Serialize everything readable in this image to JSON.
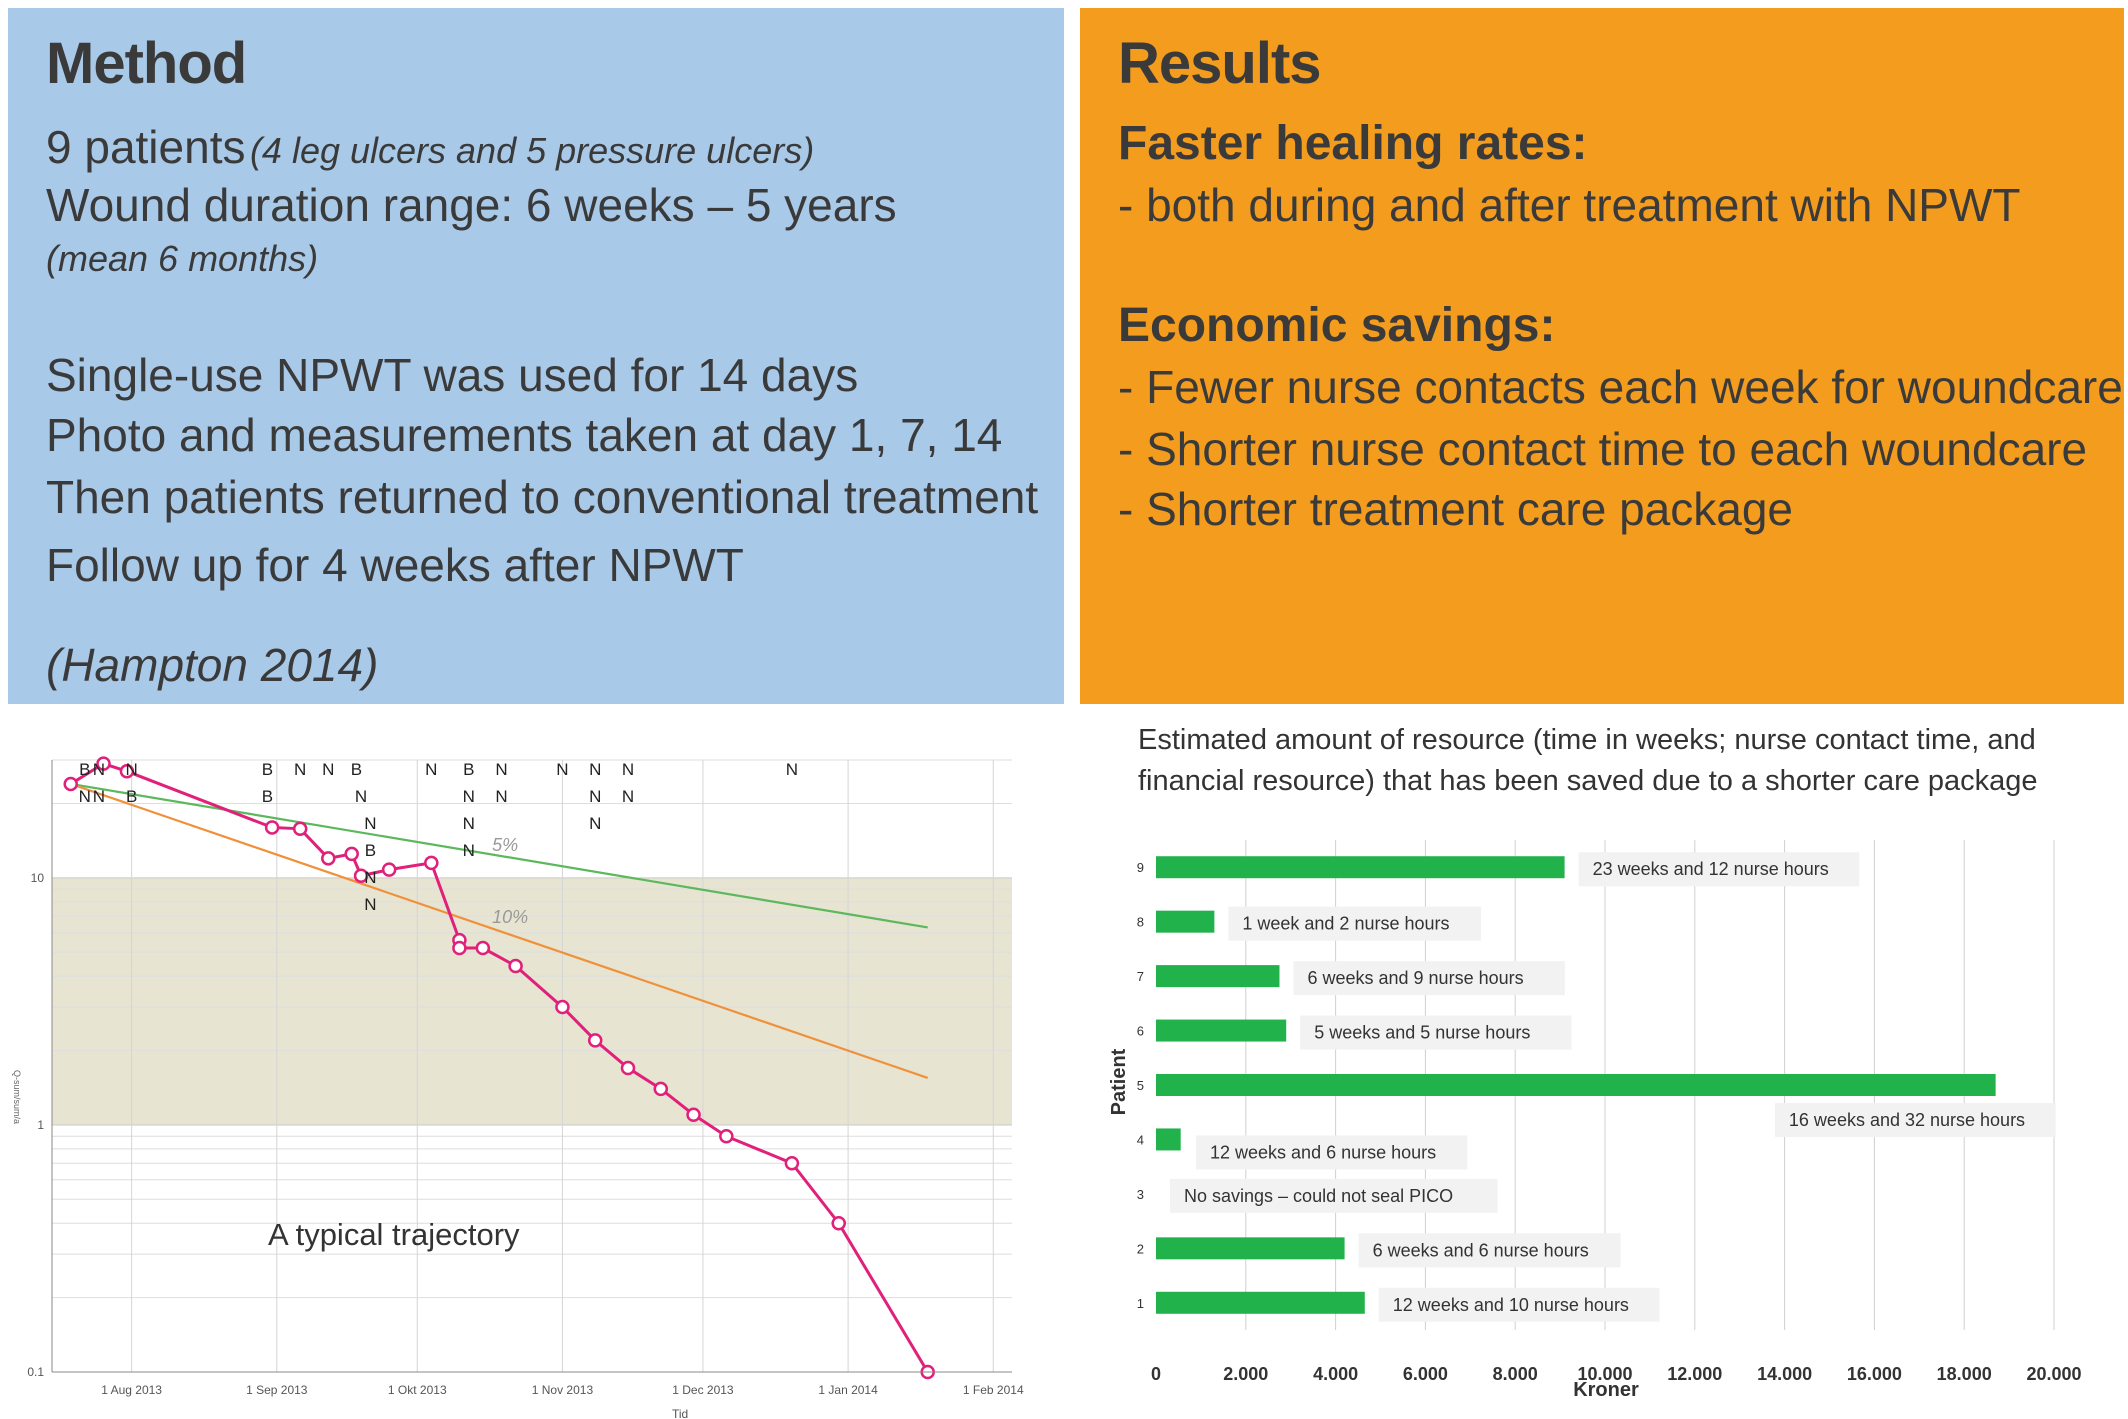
{
  "method": {
    "title": "Method",
    "patients_main": "9 patients",
    "patients_note": "(4 leg ulcers and 5 pressure ulcers)",
    "duration": "Wound duration range: 6 weeks – 5 years",
    "duration_note": "(mean 6 months)",
    "lines": [
      "Single-use NPWT was used for 14 days",
      "Photo and measurements taken at day 1, 7, 14",
      "Then patients returned to conventional treatment",
      "Follow up for 4 weeks after NPWT"
    ],
    "citation": "(Hampton 2014)"
  },
  "results": {
    "title": "Results",
    "heading1": "Faster healing rates:",
    "item1": "- both during and after treatment with NPWT",
    "heading2": "Economic savings:",
    "items2": [
      "- Fewer nurse contacts each week for woundcare",
      "- Shorter nurse contact time to each woundcare",
      "- Shorter treatment care package"
    ]
  },
  "chart_data": [
    {
      "type": "line",
      "title": "",
      "annotation": "A typical trajectory",
      "xlabel": "Tid",
      "ylabel": "Q-sum/sum/a",
      "y_scale": "log",
      "ylim": [
        0.1,
        30
      ],
      "y_ticks": [
        "10",
        "1",
        "0.1"
      ],
      "x_ticks": [
        "1 Aug 2013",
        "1 Sep 2013",
        "1 Okt 2013",
        "1 Nov 2013",
        "1 Dec 2013",
        "1 Jan 2014",
        "1 Feb 2014"
      ],
      "shaded_band": [
        1,
        10
      ],
      "series": [
        {
          "name": "",
          "color": "#e0207a",
          "points": [
            [
              "2013-07-19",
              24
            ],
            [
              "2013-07-26",
              29
            ],
            [
              "2013-07-31",
              27
            ],
            [
              "2013-08-31",
              16
            ],
            [
              "2013-09-06",
              15.8
            ],
            [
              "2013-09-12",
              12
            ],
            [
              "2013-09-17",
              12.5
            ],
            [
              "2013-09-19",
              10.2
            ],
            [
              "2013-09-25",
              10.8
            ],
            [
              "2013-10-04",
              11.5
            ],
            [
              "2013-10-10",
              5.6
            ],
            [
              "2013-10-10",
              5.2
            ],
            [
              "2013-10-15",
              5.2
            ],
            [
              "2013-10-22",
              4.4
            ],
            [
              "2013-11-01",
              3.0
            ],
            [
              "2013-11-08",
              2.2
            ],
            [
              "2013-11-15",
              1.7
            ],
            [
              "2013-11-22",
              1.4
            ],
            [
              "2013-11-29",
              1.1
            ],
            [
              "2013-12-06",
              0.9
            ],
            [
              "2013-12-20",
              0.7
            ],
            [
              "2013-12-30",
              0.4
            ],
            [
              "2014-01-18",
              0.1
            ]
          ]
        }
      ],
      "reference_lines": [
        {
          "label": "5%",
          "color": "#5cb85c",
          "from": [
            "2013-07-19",
            24
          ],
          "to": [
            "2014-01-18",
            6.3
          ]
        },
        {
          "label": "10%",
          "color": "#f0913a",
          "from": [
            "2013-07-19",
            24
          ],
          "to": [
            "2014-01-18",
            1.55
          ]
        }
      ],
      "event_markers": [
        [
          "2013-07-22",
          "B",
          0
        ],
        [
          "2013-07-25",
          "N",
          0
        ],
        [
          "2013-08-01",
          "N",
          0
        ],
        [
          "2013-07-22",
          "N",
          1
        ],
        [
          "2013-07-25",
          "N",
          1
        ],
        [
          "2013-08-01",
          "B",
          1
        ],
        [
          "2013-08-30",
          "B",
          0
        ],
        [
          "2013-09-06",
          "N",
          0
        ],
        [
          "2013-09-12",
          "N",
          0
        ],
        [
          "2013-09-18",
          "B",
          0
        ],
        [
          "2013-08-30",
          "B",
          1
        ],
        [
          "2013-09-19",
          "N",
          1
        ],
        [
          "2013-09-21",
          "N",
          2
        ],
        [
          "2013-09-21",
          "B",
          3
        ],
        [
          "2013-09-21",
          "N",
          4
        ],
        [
          "2013-09-21",
          "N",
          5
        ],
        [
          "2013-10-04",
          "N",
          0
        ],
        [
          "2013-10-12",
          "B",
          0
        ],
        [
          "2013-10-19",
          "N",
          0
        ],
        [
          "2013-10-12",
          "N",
          1
        ],
        [
          "2013-10-19",
          "N",
          1
        ],
        [
          "2013-10-12",
          "N",
          2
        ],
        [
          "2013-10-12",
          "N",
          3
        ],
        [
          "2013-11-01",
          "N",
          0
        ],
        [
          "2013-11-08",
          "N",
          0
        ],
        [
          "2013-11-15",
          "N",
          0
        ],
        [
          "2013-11-08",
          "N",
          1
        ],
        [
          "2013-11-15",
          "N",
          1
        ],
        [
          "2013-11-08",
          "N",
          2
        ],
        [
          "2013-12-20",
          "N",
          0
        ]
      ]
    },
    {
      "type": "bar",
      "orientation": "horizontal",
      "title": "Estimated amount of resource (time in weeks; nurse contact time, and financial resource) that has been saved due to a shorter care package",
      "xlabel": "Kroner",
      "ylabel": "Patient",
      "xlim": [
        0,
        20000
      ],
      "x_ticks": [
        "0",
        "2.000",
        "4.000",
        "6.000",
        "8.000",
        "10.000",
        "12.000",
        "14.000",
        "16.000",
        "18.000",
        "20.000"
      ],
      "color": "#22b24c",
      "categories": [
        "1",
        "2",
        "3",
        "4",
        "5",
        "6",
        "7",
        "8",
        "9"
      ],
      "values": [
        4650,
        4200,
        0,
        550,
        18700,
        2900,
        2750,
        1300,
        9100
      ],
      "data_labels": [
        "12 weeks and 10 nurse hours",
        "6 weeks and 6 nurse hours",
        "No savings – could not seal PICO",
        "12 weeks and 6 nurse hours",
        "16 weeks and 32 nurse hours",
        "5  weeks and 5 nurse hours",
        "6  weeks and 9 nurse hours",
        "1 week and 2 nurse hours",
        "23 weeks and 12 nurse hours"
      ]
    }
  ]
}
